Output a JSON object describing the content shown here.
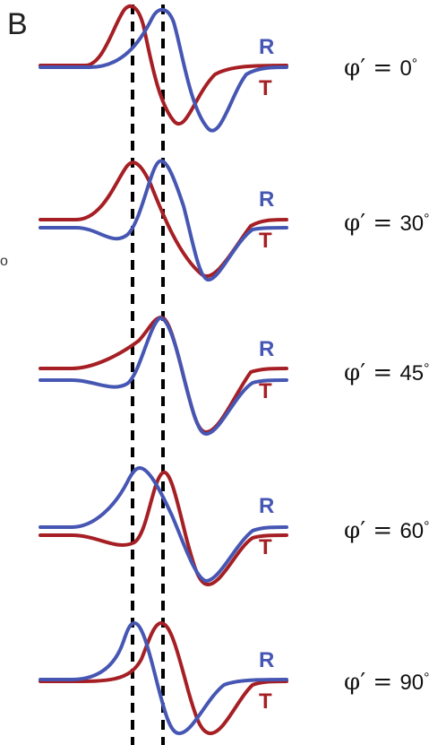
{
  "panel": {
    "label": "B"
  },
  "colors": {
    "R": "#4656b3",
    "T": "#a51f24",
    "guide": "#000000"
  },
  "stray_mark": "o",
  "rows": [
    {
      "r_label": "R",
      "t_label": "T",
      "phase_prefix": "φ′ = ",
      "phase_value": "0",
      "phase_unit": "°"
    },
    {
      "r_label": "R",
      "t_label": "T",
      "phase_prefix": "φ′ = ",
      "phase_value": "30",
      "phase_unit": "°"
    },
    {
      "r_label": "R",
      "t_label": "T",
      "phase_prefix": "φ′ = ",
      "phase_value": "45",
      "phase_unit": "°"
    },
    {
      "r_label": "R",
      "t_label": "T",
      "phase_prefix": "φ′ = ",
      "phase_value": "60",
      "phase_unit": "°"
    },
    {
      "r_label": "R",
      "t_label": "T",
      "phase_prefix": "φ′ = ",
      "phase_value": "90",
      "phase_unit": "°"
    }
  ]
}
